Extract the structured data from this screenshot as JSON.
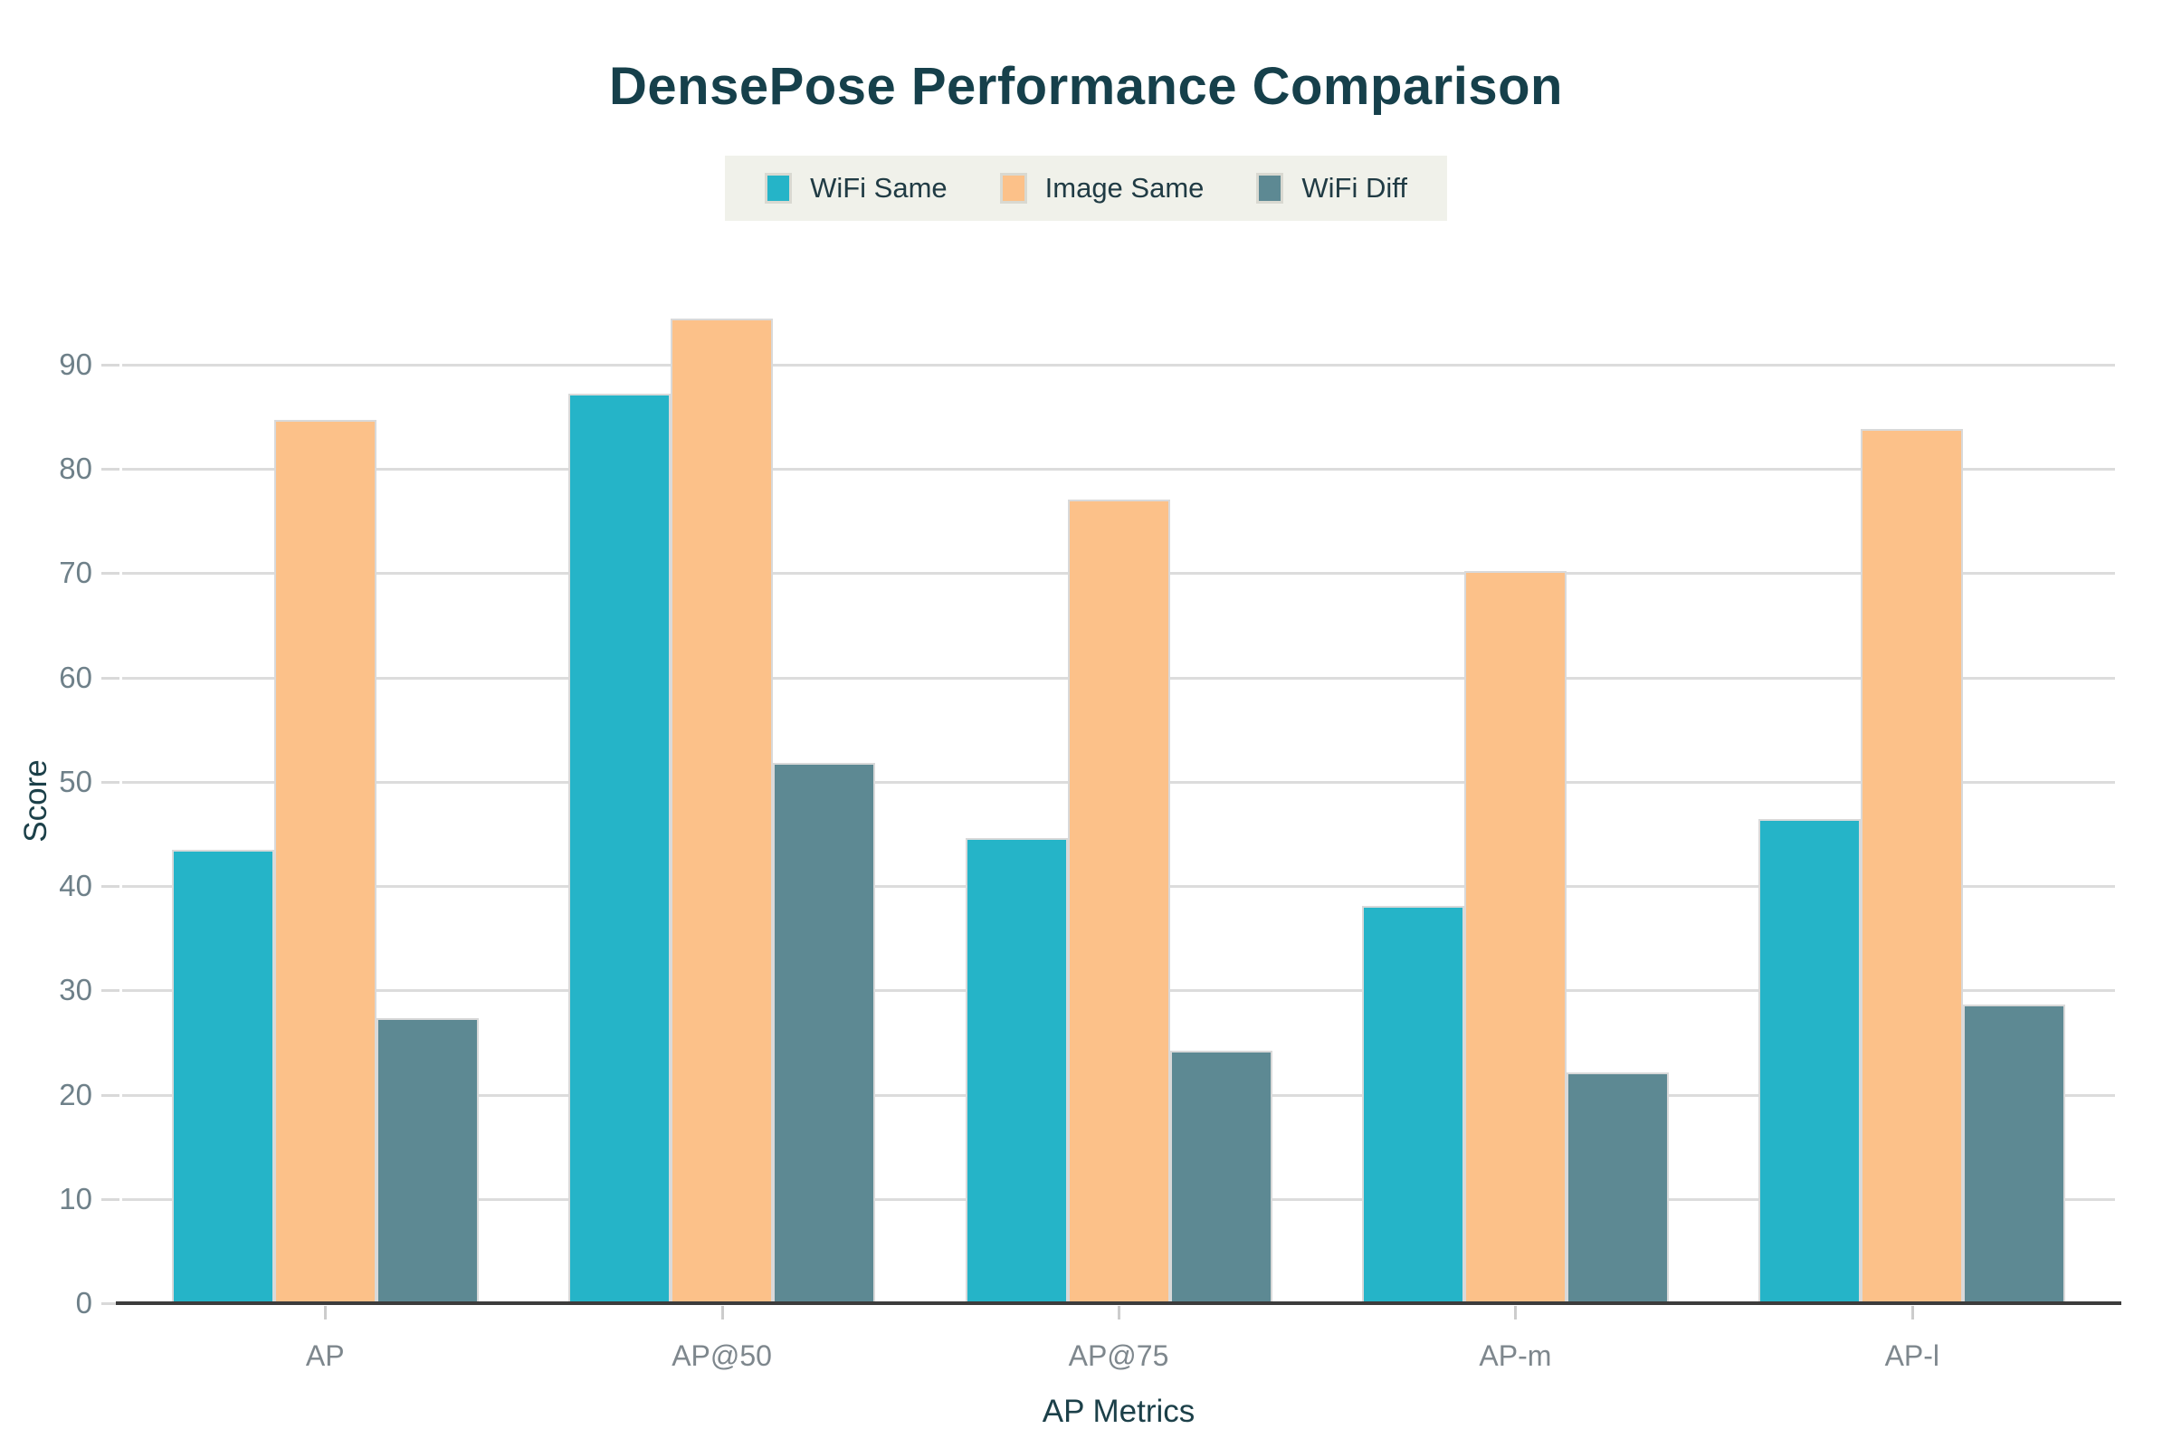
{
  "chart_data": {
    "type": "bar",
    "title": "DensePose Performance Comparison",
    "xlabel": "AP Metrics",
    "ylabel": "Score",
    "categories": [
      "AP",
      "AP@50",
      "AP@75",
      "AP-m",
      "AP-l"
    ],
    "series": [
      {
        "name": "WiFi Same",
        "color": "#25b4c8",
        "values": [
          43.5,
          87.2,
          44.6,
          38.1,
          46.4
        ]
      },
      {
        "name": "Image Same",
        "color": "#fcc189",
        "values": [
          84.7,
          94.4,
          77.1,
          70.2,
          83.8
        ]
      },
      {
        "name": "WiFi Diff",
        "color": "#5d8993",
        "values": [
          27.3,
          51.8,
          24.2,
          22.1,
          28.6
        ]
      }
    ],
    "ylim": [
      0,
      95
    ],
    "yticks": [
      0,
      10,
      20,
      30,
      40,
      50,
      60,
      70,
      80,
      90
    ],
    "grid": true,
    "legend_position": "top-center"
  },
  "style_colors": {
    "title_text": "#16404b",
    "axis_title_text": "#1c4049",
    "tick_text": "#6e8089",
    "gridline": "#dcdcdc",
    "axis_line": "#3c3c3c",
    "legend_background": "#f0f1ea",
    "background": "#ffffff"
  }
}
